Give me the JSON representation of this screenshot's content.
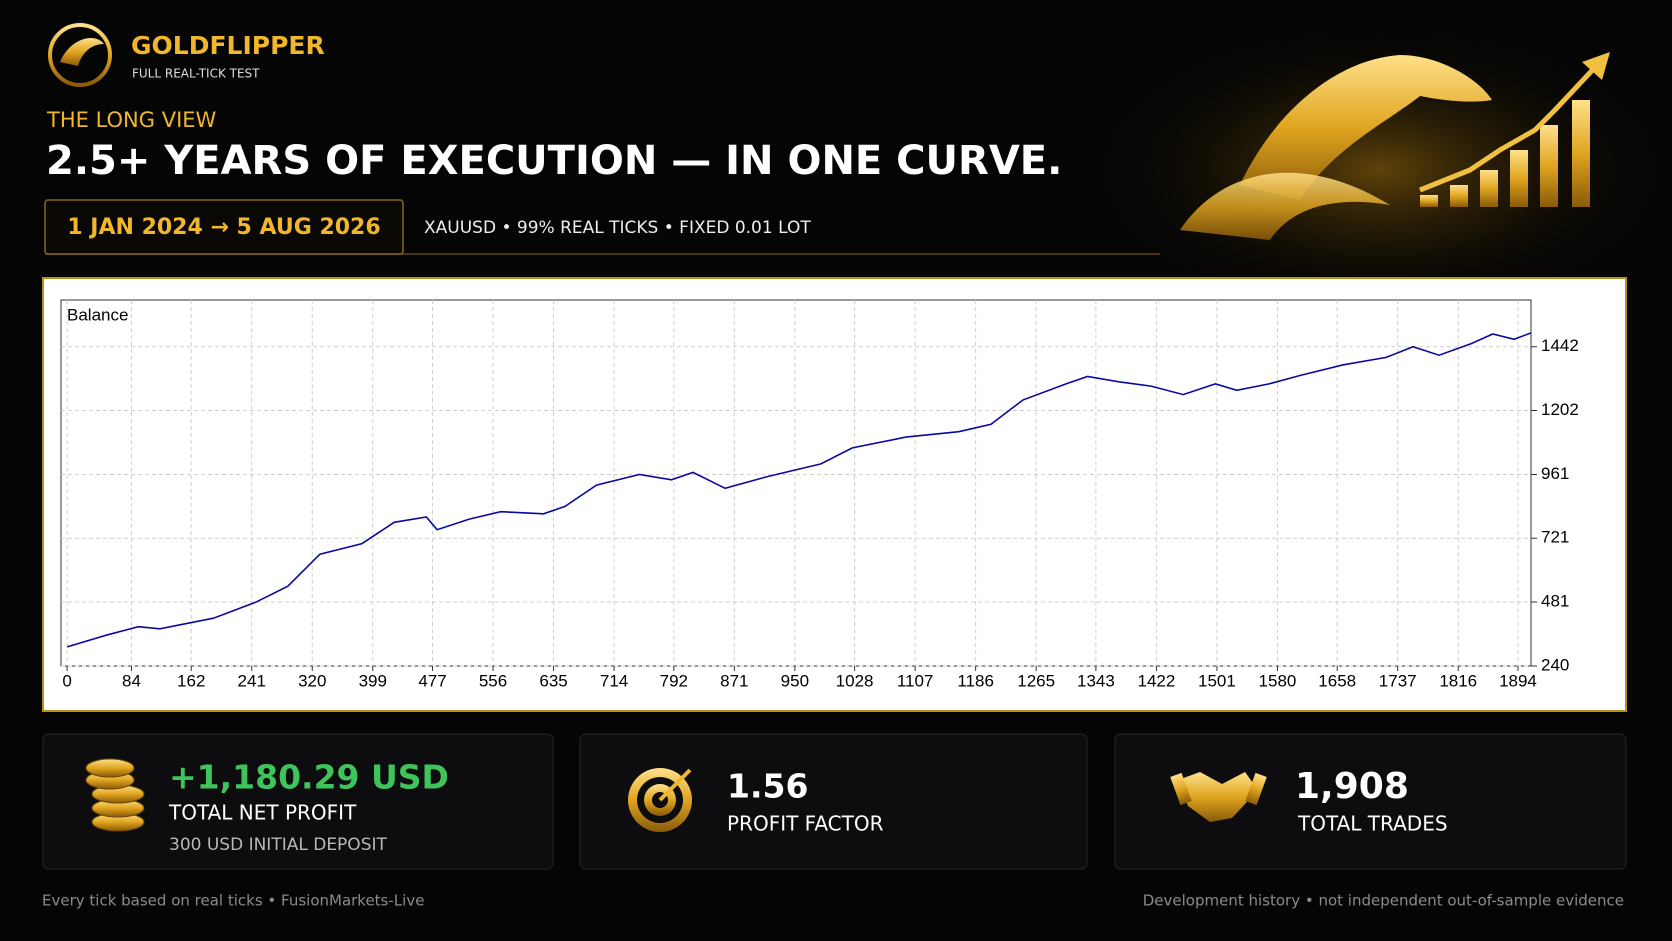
{
  "header": {
    "brand": "GOLDFLIPPER",
    "tagline": "FULL REAL-TICK TEST",
    "kicker": "THE LONG VIEW",
    "title": "2.5+ YEARS OF EXECUTION — IN ONE CURVE.",
    "period": "1 JAN 2024 → 5 AUG 2026",
    "specs": "XAUUSD • 99% REAL TICKS • FIXED 0.01 LOT"
  },
  "chart_data": {
    "type": "line",
    "grid": true,
    "x": [
      0,
      51,
      93,
      121,
      191,
      246,
      288,
      330,
      385,
      427,
      469,
      483,
      525,
      566,
      622,
      650,
      691,
      747,
      789,
      817,
      859,
      914,
      984,
      1025,
      1095,
      1164,
      1206,
      1248,
      1304,
      1332,
      1373,
      1415,
      1457,
      1499,
      1527,
      1569,
      1610,
      1666,
      1722,
      1757,
      1791,
      1833,
      1861,
      1889,
      1911
    ],
    "series": [
      {
        "name": "Balance",
        "color": "#0a0a9e",
        "values": [
          312,
          356,
          388,
          380,
          420,
          480,
          540,
          661,
          701,
          781,
          801,
          753,
          793,
          821,
          813,
          841,
          921,
          961,
          941,
          969,
          909,
          953,
          1001,
          1061,
          1102,
          1122,
          1150,
          1242,
          1302,
          1330,
          1310,
          1294,
          1262,
          1302,
          1278,
          1302,
          1334,
          1374,
          1402,
          1442,
          1410,
          1454,
          1490,
          1470,
          1494
        ]
      }
    ],
    "xlim": [
      -8,
      1911
    ],
    "ylim": [
      240,
      1618
    ],
    "xticks": [
      0,
      84,
      162,
      241,
      320,
      399,
      477,
      556,
      635,
      714,
      792,
      871,
      950,
      1028,
      1107,
      1186,
      1265,
      1343,
      1422,
      1501,
      1580,
      1658,
      1737,
      1816,
      1894
    ],
    "yticks": [
      240,
      481,
      721,
      961,
      1202,
      1442
    ]
  },
  "stats": [
    {
      "value": "+1,180.29 USD",
      "label": "TOTAL NET PROFIT",
      "note": "300 USD INITIAL DEPOSIT"
    },
    {
      "value": "1.56",
      "label": "PROFIT FACTOR"
    },
    {
      "value": "1,908",
      "label": "TOTAL TRADES"
    }
  ],
  "footer": {
    "left": "Every tick based on real ticks • FusionMarkets-Live",
    "right": "Development history • not independent out-of-sample evidence"
  }
}
